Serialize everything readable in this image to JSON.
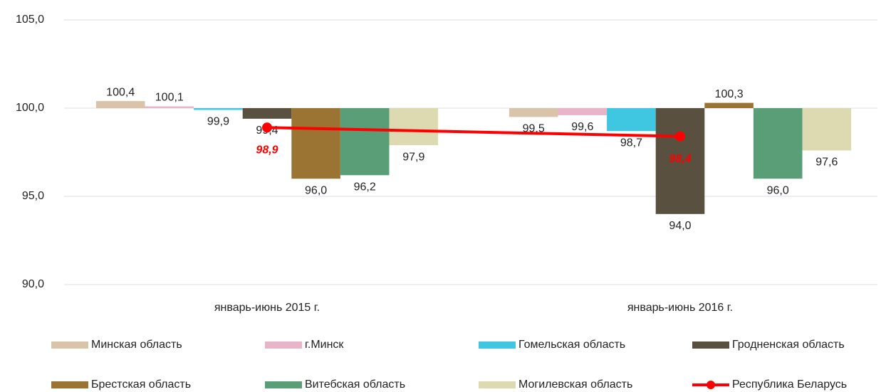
{
  "chart_data": {
    "type": "bar",
    "categories": [
      "январь-июнь 2015 г.",
      "январь-июнь 2016 г."
    ],
    "ylim": [
      90,
      105
    ],
    "yticks": [
      {
        "value": 90,
        "label": "90,0"
      },
      {
        "value": 95,
        "label": "95,0"
      },
      {
        "value": 100,
        "label": "100,0"
      },
      {
        "value": 105,
        "label": "105,0"
      }
    ],
    "bar_base": 100,
    "grid": true,
    "legend": "bottom",
    "series": [
      {
        "name": "Минская область",
        "color": "#d9c3a9",
        "values": [
          100.4,
          99.5
        ],
        "value_labels": [
          "100,4",
          "99,5"
        ]
      },
      {
        "name": "г.Минск",
        "color": "#e8b4c8",
        "values": [
          100.1,
          99.6
        ],
        "value_labels": [
          "100,1",
          "99,6"
        ]
      },
      {
        "name": "Гомельская область",
        "color": "#3fc6e0",
        "values": [
          99.9,
          98.7
        ],
        "value_labels": [
          "99,9",
          "98,7"
        ]
      },
      {
        "name": "Гродненская область",
        "color": "#5a5040",
        "values": [
          99.4,
          94.0
        ],
        "value_labels": [
          "99,4",
          "94,0"
        ]
      },
      {
        "name": "Брестская область",
        "color": "#9b7433",
        "values": [
          96.0,
          100.3
        ],
        "value_labels": [
          "96,0",
          "100,3"
        ]
      },
      {
        "name": "Витебская область",
        "color": "#5a9e78",
        "values": [
          96.2,
          96.0
        ],
        "value_labels": [
          "96,2",
          "96,0"
        ]
      },
      {
        "name": "Могилевская область",
        "color": "#ddd9b0",
        "values": [
          97.9,
          97.6
        ],
        "value_labels": [
          "97,9",
          "97,6"
        ]
      },
      {
        "name": "Республика Беларусь",
        "type": "line",
        "color": "#ff0000",
        "values": [
          98.9,
          98.4
        ],
        "value_labels": [
          "98,9",
          "98,4"
        ]
      }
    ]
  }
}
